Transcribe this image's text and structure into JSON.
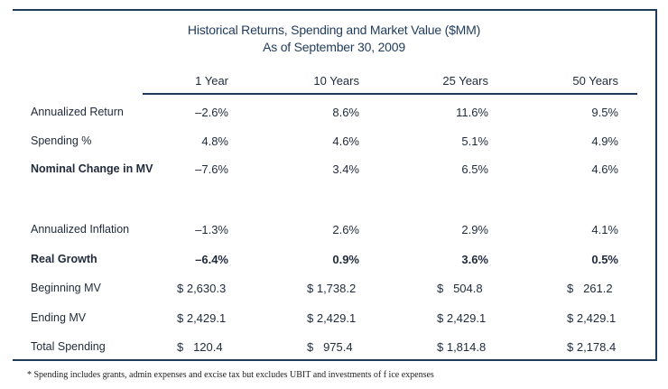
{
  "title_line1": "Historical Returns, Spending and Market Value ($MM)",
  "title_line2": "As of September 30, 2009",
  "columns": [
    "1 Year",
    "10 Years",
    "25 Years",
    "50 Years"
  ],
  "rows": [
    {
      "label": "Annualized Return",
      "bold": false,
      "values": [
        "–2.6%",
        "8.6%",
        "11.6%",
        "9.5%"
      ]
    },
    {
      "label": "Spending %",
      "bold": false,
      "values": [
        "4.8%",
        "4.6%",
        "5.1%",
        "4.9%"
      ]
    },
    {
      "label": "Nominal Change in MV",
      "bold": true,
      "values": [
        "–7.6%",
        "3.4%",
        "6.5%",
        "4.6%"
      ]
    },
    {
      "label": "Annualized Inflation",
      "bold": false,
      "values": [
        "–1.3%",
        "2.6%",
        "2.9%",
        "4.1%"
      ]
    },
    {
      "label": "Real Growth",
      "bold": true,
      "values": [
        "–6.4%",
        "0.9%",
        "3.6%",
        "0.5%"
      ]
    },
    {
      "label": "Beginning MV",
      "bold": false,
      "values": [
        "$ 2,630.3",
        "$ 1,738.2",
        "$   504.8",
        "$   261.2"
      ]
    },
    {
      "label": "Ending MV",
      "bold": false,
      "values": [
        "$ 2,429.1",
        "$ 2,429.1",
        "$ 2,429.1",
        "$ 2,429.1"
      ]
    },
    {
      "label": "Total Spending",
      "bold": false,
      "values": [
        "$   120.4",
        "$   975.4",
        "$ 1,814.8",
        "$ 2,178.4"
      ]
    }
  ],
  "footnote": "* Spending includes grants, admin expenses and excise tax but excludes UBIT and investments of f ice expenses"
}
